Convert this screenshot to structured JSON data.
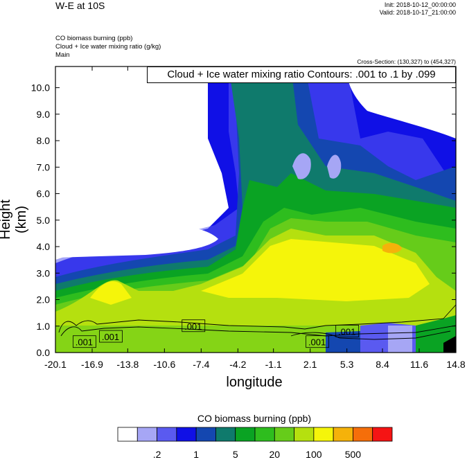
{
  "header": {
    "title": "W-E at 10S",
    "init": "Init: 2018-10-12_00:00:00",
    "valid": "Valid: 2018-10-17_21:00:00",
    "fields": [
      "CO biomass burning   (ppb)",
      "Cloud + Ice water mixing ratio   (g/kg)",
      "Main"
    ],
    "cross_section": "Cross-Section: (130,327) to (454,327)"
  },
  "contour_info": "Cloud + Ice water mixing ratio Contours: .001 to .1 by .099",
  "colorbar": {
    "title": "CO biomass burning  (ppb)",
    "labels": [
      ".2",
      "1",
      "5",
      "20",
      "100",
      "500"
    ],
    "colors": [
      "#ffffff",
      "#a6a6f5",
      "#5a5af0",
      "#1010e6",
      "#1447b0",
      "#0f7a6c",
      "#0aa323",
      "#2ebd1e",
      "#66cc1a",
      "#b5e00f",
      "#f5f50a",
      "#f5b20a",
      "#f56e0a",
      "#f51414"
    ]
  },
  "chart_data": {
    "type": "heatmap",
    "title": "W-E at 10S",
    "xlabel": "longitude",
    "ylabel": "Height (km)",
    "xticks": [
      "-20.1",
      "-16.9",
      "-13.8",
      "-10.6",
      "-7.4",
      "-4.2",
      "-1.1",
      "2.1",
      "5.3",
      "8.4",
      "11.6",
      "14.8"
    ],
    "yticks": [
      "0.0",
      "1.0",
      "2.0",
      "3.0",
      "4.0",
      "5.0",
      "6.0",
      "7.0",
      "8.0",
      "9.0",
      "10.0"
    ],
    "xlim": [
      -20.1,
      14.8
    ],
    "ylim": [
      0,
      10.8
    ],
    "contour_labels": [
      ".001",
      ".001",
      ".001",
      ".001",
      ".001"
    ]
  }
}
